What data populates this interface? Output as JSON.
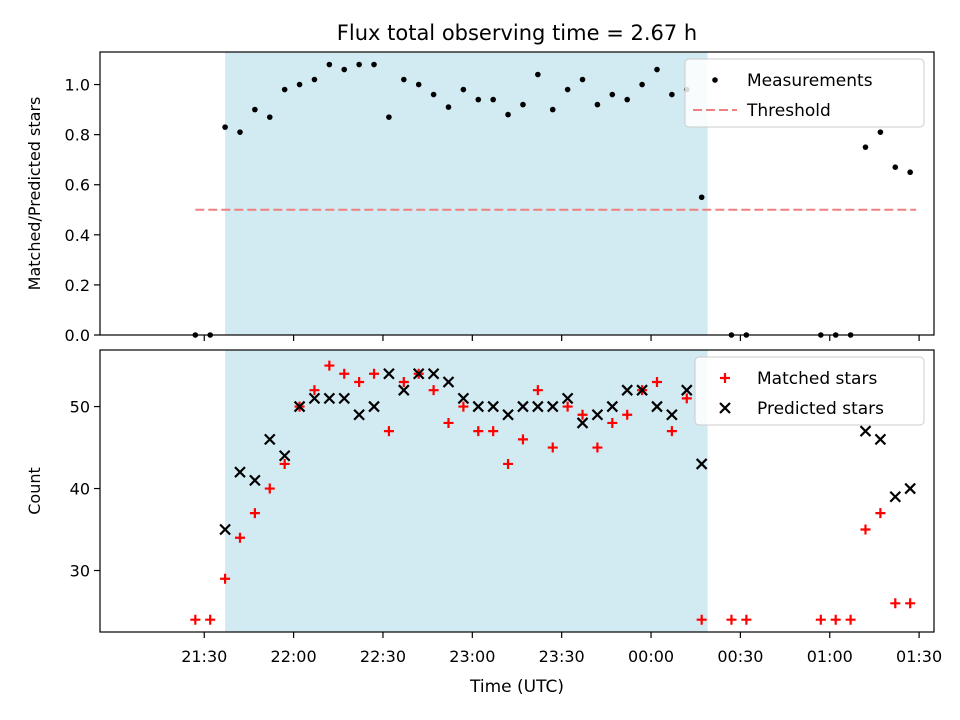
{
  "chart_data": {
    "title": "Flux total observing time = 2.67 h",
    "xlabel": "Time (UTC)",
    "x_unit": "minutes after 21:00 UTC",
    "x_range": [
      -5,
      275
    ],
    "x_ticks": [
      {
        "value": 30,
        "label": "21:30"
      },
      {
        "value": 60,
        "label": "22:00"
      },
      {
        "value": 90,
        "label": "22:30"
      },
      {
        "value": 120,
        "label": "23:00"
      },
      {
        "value": 150,
        "label": "23:30"
      },
      {
        "value": 180,
        "label": "00:00"
      },
      {
        "value": 210,
        "label": "00:30"
      },
      {
        "value": 240,
        "label": "01:00"
      },
      {
        "value": 270,
        "label": "01:30"
      }
    ],
    "shaded_span": {
      "start": 37,
      "end": 199,
      "color": "#add8e6"
    },
    "panels": [
      {
        "type": "scatter",
        "ylabel": "Matched/Predicted stars",
        "ylim": [
          0,
          1.13
        ],
        "y_ticks": [
          {
            "value": 0.0,
            "label": "0.0"
          },
          {
            "value": 0.2,
            "label": "0.2"
          },
          {
            "value": 0.4,
            "label": "0.4"
          },
          {
            "value": 0.6,
            "label": "0.6"
          },
          {
            "value": 0.8,
            "label": "0.8"
          },
          {
            "value": 1.0,
            "label": "1.0"
          }
        ],
        "legend": {
          "placement": "upper right",
          "entries": [
            {
              "label": "Measurements",
              "marker": "dot",
              "color": "#000000"
            },
            {
              "label": "Threshold",
              "marker": "dashed-line",
              "color": "#f08080"
            }
          ]
        },
        "threshold": {
          "value": 0.5,
          "x": [
            27,
            269
          ],
          "color": "#f08080"
        },
        "series": [
          {
            "name": "Measurements",
            "marker": "dot",
            "color": "#000000",
            "x": [
              27,
              32,
              37,
              42,
              47,
              52,
              57,
              62,
              67,
              72,
              77,
              82,
              87,
              92,
              97,
              102,
              107,
              112,
              117,
              122,
              127,
              132,
              137,
              142,
              147,
              152,
              157,
              162,
              167,
              172,
              177,
              182,
              187,
              192,
              197,
              207,
              212,
              237,
              242,
              247,
              252,
              257,
              262,
              267
            ],
            "y": [
              0.0,
              0.0,
              0.83,
              0.81,
              0.9,
              0.87,
              0.98,
              1.0,
              1.02,
              1.08,
              1.06,
              1.08,
              1.08,
              0.87,
              1.02,
              1.0,
              0.96,
              0.91,
              0.98,
              0.94,
              0.94,
              0.88,
              0.92,
              1.04,
              0.9,
              0.98,
              1.02,
              0.92,
              0.96,
              0.94,
              1.0,
              1.06,
              0.96,
              0.98,
              0.55,
              0.0,
              0.0,
              0.0,
              0.0,
              0.0,
              0.75,
              0.81,
              0.67,
              0.65
            ]
          }
        ]
      },
      {
        "type": "scatter",
        "ylabel": "Count",
        "ylim": [
          22.5,
          56.9
        ],
        "y_ticks": [
          {
            "value": 30,
            "label": "30"
          },
          {
            "value": 40,
            "label": "40"
          },
          {
            "value": 50,
            "label": "50"
          }
        ],
        "legend": {
          "placement": "upper right",
          "entries": [
            {
              "label": "Matched stars",
              "marker": "plus",
              "color": "#ff0000"
            },
            {
              "label": "Predicted stars",
              "marker": "cross",
              "color": "#000000"
            }
          ]
        },
        "series": [
          {
            "name": "Matched stars",
            "marker": "plus",
            "color": "#ff0000",
            "x": [
              27,
              32,
              37,
              42,
              47,
              52,
              57,
              62,
              67,
              72,
              77,
              82,
              87,
              92,
              97,
              102,
              107,
              112,
              117,
              122,
              127,
              132,
              137,
              142,
              147,
              152,
              157,
              162,
              167,
              172,
              177,
              182,
              187,
              192,
              197,
              207,
              212,
              237,
              242,
              247,
              252,
              257,
              262,
              267
            ],
            "y": [
              24,
              24,
              29,
              34,
              37,
              40,
              43,
              50,
              52,
              55,
              54,
              53,
              54,
              47,
              53,
              54,
              52,
              48,
              50,
              47,
              47,
              43,
              46,
              52,
              45,
              50,
              49,
              45,
              48,
              49,
              52,
              53,
              47,
              51,
              24,
              24,
              24,
              24,
              24,
              24,
              35,
              37,
              26,
              26
            ]
          },
          {
            "name": "Predicted stars",
            "marker": "cross",
            "color": "#000000",
            "x": [
              37,
              42,
              47,
              52,
              57,
              62,
              67,
              72,
              77,
              82,
              87,
              92,
              97,
              102,
              107,
              112,
              117,
              122,
              127,
              132,
              137,
              142,
              147,
              152,
              157,
              162,
              167,
              172,
              177,
              182,
              187,
              192,
              197,
              252,
              257,
              262,
              267
            ],
            "y": [
              35,
              42,
              41,
              46,
              44,
              50,
              51,
              51,
              51,
              49,
              50,
              54,
              52,
              54,
              54,
              53,
              51,
              50,
              50,
              49,
              50,
              50,
              50,
              51,
              48,
              49,
              50,
              52,
              52,
              50,
              49,
              52,
              43,
              47,
              46,
              39,
              40
            ]
          }
        ]
      }
    ]
  }
}
